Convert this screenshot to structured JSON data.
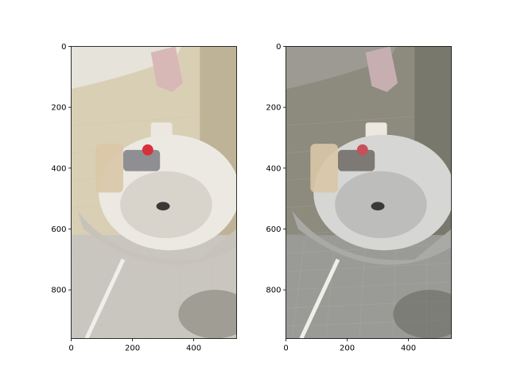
{
  "figure": {
    "background": "#ffffff"
  },
  "chart_data": [
    {
      "type": "image",
      "panel": "left",
      "title": "",
      "xlabel": "",
      "ylabel": "",
      "xlim": [
        0,
        540
      ],
      "ylim": [
        960,
        0
      ],
      "x_ticks": [
        0,
        200,
        400
      ],
      "y_ticks": [
        0,
        200,
        400,
        600,
        800
      ],
      "grid": false,
      "image_content": "photo-bathroom-sink",
      "palette": {
        "wall": "#d9cfb4",
        "wall_dark": "#a99d7f",
        "tile_floor": "#c9c6bf",
        "sink": "#ece9e3",
        "sink_shadow": "#c8c3ba",
        "towel": "#d8b8b6",
        "faucet": "#8f8f93",
        "red_accent": "#d8303a",
        "shadow": "#6f6a62"
      }
    },
    {
      "type": "image",
      "panel": "right",
      "title": "",
      "xlabel": "",
      "ylabel": "",
      "xlim": [
        0,
        540
      ],
      "ylim": [
        960,
        0
      ],
      "x_ticks": [
        0,
        200,
        400
      ],
      "y_ticks": [
        0,
        200,
        400,
        600,
        800
      ],
      "grid": false,
      "image_content": "reconstructed-render-bathroom-sink",
      "palette": {
        "wall": "#8d8a7e",
        "wall_dark": "#6a6a5e",
        "tile_floor": "#9a9a96",
        "sink": "#d6d6d4",
        "sink_shadow": "#a9a9a6",
        "towel": "#c7aeb0",
        "faucet": "#7d7a76",
        "red_accent": "#c8505a",
        "shadow": "#5c5b54"
      }
    }
  ]
}
